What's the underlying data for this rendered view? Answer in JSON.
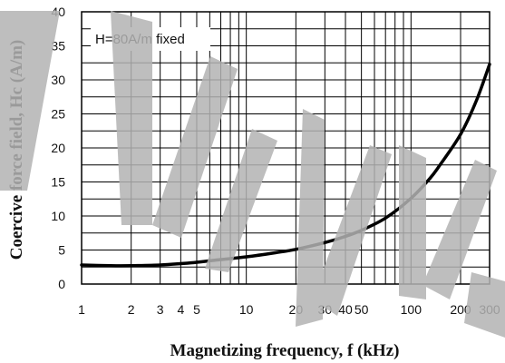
{
  "chart_data": {
    "type": "line",
    "title": "",
    "xlabel": "Magnetizing frequency, f (kHz)",
    "ylabel": "Coercive force field, Hc (A/m)",
    "annotation": "H=80A/m fixed",
    "x_scale": "log",
    "xlim": [
      1,
      300
    ],
    "ylim": [
      0,
      40
    ],
    "grid": true,
    "x_ticks": [
      1,
      2,
      3,
      4,
      5,
      10,
      20,
      30,
      40,
      50,
      100,
      200,
      300
    ],
    "y_ticks": [
      0,
      5,
      10,
      15,
      20,
      25,
      30,
      35,
      40
    ],
    "series": [
      {
        "x": [
          1,
          1.5,
          2,
          3,
          4,
          5,
          7,
          10,
          15,
          20,
          30,
          40,
          50,
          70,
          100,
          130,
          150,
          200,
          250,
          300
        ],
        "y": [
          2.8,
          2.7,
          2.7,
          2.8,
          3.0,
          3.2,
          3.6,
          4.0,
          4.6,
          5.1,
          6.1,
          7.0,
          7.9,
          9.7,
          12.6,
          15.5,
          17.5,
          22.0,
          27.0,
          32.3
        ]
      }
    ],
    "colors": {
      "line": "#000000",
      "grid": "#000000",
      "watermark": "#b3b3b3"
    },
    "watermark": "PRELIMINARY"
  }
}
